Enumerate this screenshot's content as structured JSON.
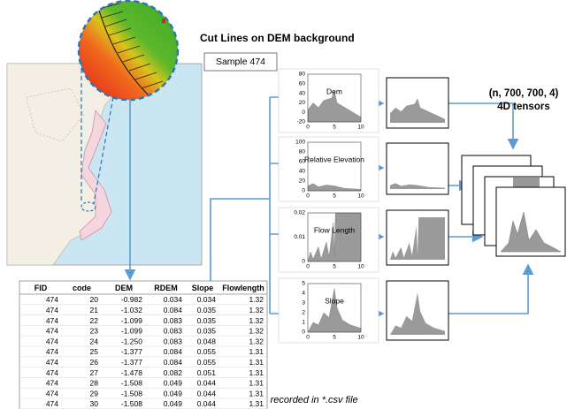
{
  "title": "Cut Lines on DEM background",
  "sample": "Sample 474",
  "tensor_label": {
    "shape": "(n, 700, 700, 4)",
    "kind": "4D tensors"
  },
  "csv_note": "Points recorded in *.csv file",
  "table": {
    "columns": [
      "FID",
      "code",
      "DEM",
      "RDEM",
      "Slope",
      "Flowlength"
    ],
    "rows": [
      [
        "474",
        "20",
        "-0.982",
        "0.034",
        "0.034",
        "1.32"
      ],
      [
        "474",
        "21",
        "-1.032",
        "0.084",
        "0.035",
        "1.32"
      ],
      [
        "474",
        "22",
        "-1.099",
        "0.083",
        "0.035",
        "1.32"
      ],
      [
        "474",
        "23",
        "-1.099",
        "0.083",
        "0.035",
        "1.32"
      ],
      [
        "474",
        "24",
        "-1.250",
        "0.083",
        "0.048",
        "1.32"
      ],
      [
        "474",
        "25",
        "-1.377",
        "0.084",
        "0.055",
        "1.31"
      ],
      [
        "474",
        "26",
        "-1.377",
        "0.084",
        "0.055",
        "1.31"
      ],
      [
        "474",
        "27",
        "-1.478",
        "0.082",
        "0.051",
        "1.31"
      ],
      [
        "474",
        "28",
        "-1.508",
        "0.049",
        "0.044",
        "1.31"
      ],
      [
        "474",
        "29",
        "-1.508",
        "0.049",
        "0.044",
        "1.31"
      ],
      [
        "474",
        "30",
        "-1.508",
        "0.049",
        "0.044",
        "1.31"
      ]
    ]
  },
  "plots": [
    {
      "label": "Dem",
      "yticks": [
        "80",
        "60",
        "40",
        "20",
        "0",
        "-20"
      ],
      "xticks": [
        "0",
        "5",
        "10"
      ]
    },
    {
      "label": "Relative Elevation",
      "yticks": [
        "100",
        "80",
        "60",
        "40",
        "20",
        "0"
      ],
      "xticks": [
        "0",
        "5",
        "10"
      ]
    },
    {
      "label": "Flow Length",
      "yticks": [
        "0.02",
        "0.01",
        "0"
      ],
      "xticks": [
        "0",
        "5",
        "10"
      ]
    },
    {
      "label": "Slope",
      "yticks": [
        "5",
        "4",
        "3",
        "2",
        "1",
        "0"
      ],
      "xticks": [
        "0",
        "5",
        "10"
      ]
    }
  ]
}
